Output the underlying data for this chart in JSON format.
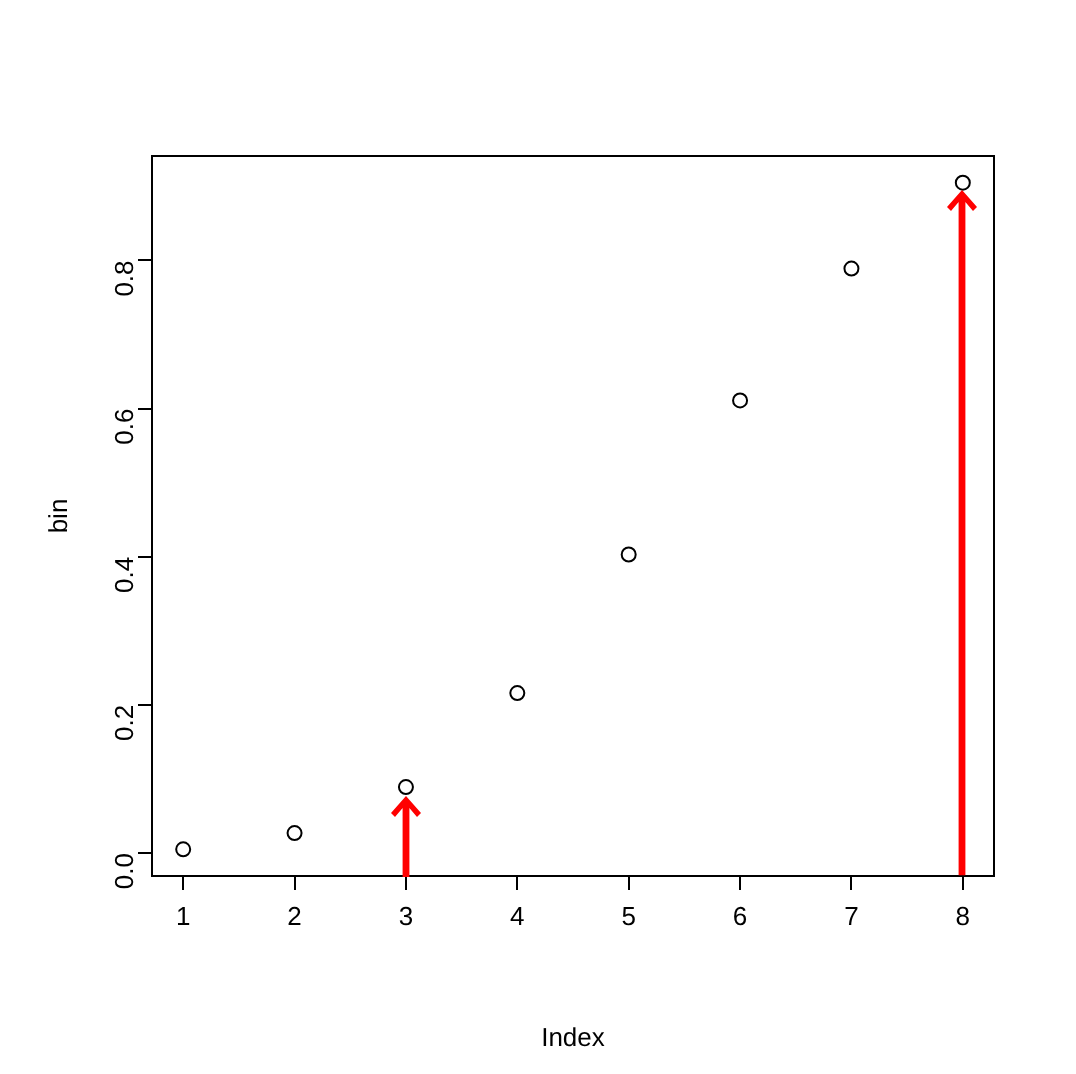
{
  "chart_data": {
    "type": "scatter",
    "xlabel": "Index",
    "ylabel": "bin",
    "x": [
      1,
      2,
      3,
      4,
      5,
      6,
      7,
      8
    ],
    "series": [
      {
        "color": "#000000",
        "values": [
          0.005,
          0.027,
          0.089,
          0.216,
          0.403,
          0.611,
          0.789,
          0.905
        ]
      }
    ],
    "xlim": [
      0.72,
      8.28
    ],
    "xticks": [
      1,
      2,
      3,
      4,
      5,
      6,
      7,
      8
    ],
    "ylim": [
      -0.031,
      0.941
    ],
    "yticks": [
      {
        "value": 0,
        "label": "0.0"
      },
      {
        "value": 0.2,
        "label": "0.2"
      },
      {
        "value": 0.4,
        "label": "0.4"
      },
      {
        "value": 0.6,
        "label": "0.6"
      },
      {
        "value": 0.8,
        "label": "0.8"
      }
    ],
    "marker": "circle",
    "grid": false,
    "legend": false
  }
}
